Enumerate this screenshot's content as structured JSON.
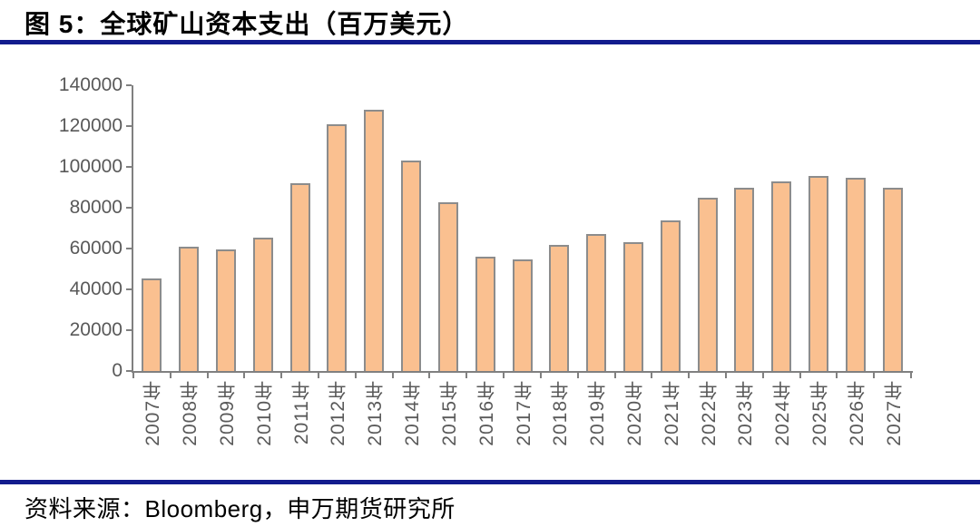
{
  "header": {
    "title": "图 5：全球矿山资本支出（百万美元）"
  },
  "footer": {
    "source": "资料来源：Bloomberg，申万期货研究所"
  },
  "colors": {
    "divider": "#121C8D",
    "bar_fill": "#FAC090",
    "bar_border": "#8C8C8C",
    "axis": "#808080",
    "axis_label": "#595959",
    "text": "#000000",
    "background": "#FFFFFF"
  },
  "chart_data": {
    "type": "bar",
    "title": "图 5：全球矿山资本支出（百万美元）",
    "unit_label": "百万美元",
    "categories": [
      "2007年",
      "2008年",
      "2009年",
      "2010年",
      "2011年",
      "2012年",
      "2013年",
      "2014年",
      "2015年",
      "2016年",
      "2017年",
      "2018年",
      "2019年",
      "2020年",
      "2021年",
      "2022年",
      "2023年",
      "2024年",
      "2025年",
      "2026年",
      "2027年"
    ],
    "values": [
      45500,
      61000,
      59500,
      65500,
      92000,
      121000,
      128000,
      103000,
      82500,
      56000,
      54500,
      62000,
      67000,
      63000,
      74000,
      85000,
      90000,
      93000,
      95500,
      94500,
      90000
    ],
    "ylim": [
      0,
      140000
    ],
    "yticks": [
      0,
      20000,
      40000,
      60000,
      80000,
      100000,
      120000,
      140000
    ],
    "xlabel": "",
    "ylabel": "",
    "grid": false,
    "legend": "none",
    "bar_color": "#FAC090",
    "source": "Bloomberg，申万期货研究所"
  }
}
